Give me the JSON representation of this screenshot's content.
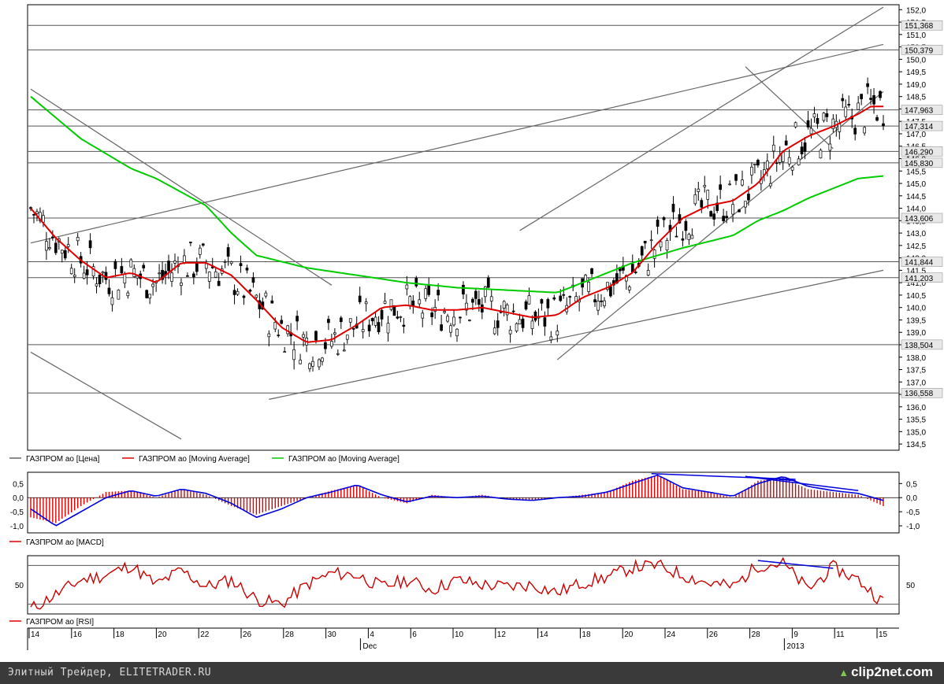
{
  "footer": {
    "site_text": "Элитный Трейдер, ELITETRADER.RU",
    "watermark": "clip2net.com"
  },
  "colors": {
    "price": "#000000",
    "ma_fast": "#e00000",
    "ma_slow": "#00cc00",
    "macd_signal": "#0000dd",
    "rsi": "#cc0000",
    "trend": "#666666"
  },
  "chart_data": [
    {
      "type": "candlestick",
      "yaxis_ticks": [
        "152,0",
        "151,5",
        "151,0",
        "150,5",
        "150,0",
        "149,5",
        "149,0",
        "148,5",
        "148,0",
        "147,5",
        "147,0",
        "146,5",
        "146,0",
        "145,5",
        "145,0",
        "144,5",
        "144,0",
        "143,5",
        "143,0",
        "142,5",
        "142,0",
        "141,5",
        "141,0",
        "140,5",
        "140,0",
        "139,5",
        "139,0",
        "138,5",
        "138,0",
        "137,5",
        "137,0",
        "136,5",
        "136,0",
        "135,5",
        "135,0",
        "134,5"
      ],
      "ylim": [
        134.25,
        152.2
      ],
      "level_labels": [
        "151,368",
        "150,379",
        "147,963",
        "147,314",
        "146,290",
        "145,830",
        "143,606",
        "141,844",
        "141,203",
        "138,504",
        "136,558"
      ],
      "levels": [
        151.368,
        150.379,
        147.963,
        147.314,
        146.29,
        145.83,
        143.606,
        141.844,
        141.203,
        138.504,
        136.558
      ],
      "legend": [
        {
          "label": "ГАЗПРОМ ао [Цена]"
        },
        {
          "label": "ГАЗПРОМ ао [Moving Average]"
        },
        {
          "label": "ГАЗПРОМ ао [Moving Average]"
        }
      ],
      "ma_fast_anchors": [
        [
          0,
          144.0
        ],
        [
          2,
          142.8
        ],
        [
          4,
          141.9
        ],
        [
          6,
          141.2
        ],
        [
          8,
          141.4
        ],
        [
          10,
          141.0
        ],
        [
          12,
          141.8
        ],
        [
          14,
          141.8
        ],
        [
          16,
          141.3
        ],
        [
          18,
          140.3
        ],
        [
          20,
          139.2
        ],
        [
          22,
          138.6
        ],
        [
          24,
          138.7
        ],
        [
          26,
          139.3
        ],
        [
          28,
          140.0
        ],
        [
          30,
          140.1
        ],
        [
          32,
          139.9
        ],
        [
          34,
          139.9
        ],
        [
          36,
          140.0
        ],
        [
          38,
          139.8
        ],
        [
          40,
          139.6
        ],
        [
          42,
          139.7
        ],
        [
          44,
          140.4
        ],
        [
          46,
          140.8
        ],
        [
          48,
          141.4
        ],
        [
          50,
          142.6
        ],
        [
          52,
          143.6
        ],
        [
          54,
          144.1
        ],
        [
          56,
          144.3
        ],
        [
          58,
          145.0
        ],
        [
          60,
          146.3
        ],
        [
          62,
          146.9
        ],
        [
          64,
          147.3
        ],
        [
          66,
          147.8
        ],
        [
          67,
          148.1
        ],
        [
          68,
          148.1
        ]
      ],
      "ma_slow_anchors": [
        [
          0,
          148.5
        ],
        [
          4,
          146.8
        ],
        [
          8,
          145.6
        ],
        [
          10,
          145.2
        ],
        [
          14,
          144.1
        ],
        [
          16,
          143.0
        ],
        [
          18,
          142.1
        ],
        [
          22,
          141.6
        ],
        [
          26,
          141.3
        ],
        [
          30,
          141.0
        ],
        [
          34,
          140.8
        ],
        [
          38,
          140.7
        ],
        [
          42,
          140.6
        ],
        [
          44,
          141.0
        ],
        [
          48,
          141.8
        ],
        [
          52,
          142.4
        ],
        [
          56,
          142.9
        ],
        [
          58,
          143.5
        ],
        [
          60,
          143.9
        ],
        [
          62,
          144.4
        ],
        [
          64,
          144.8
        ],
        [
          66,
          145.2
        ],
        [
          68,
          145.3
        ]
      ],
      "trend_lines": [
        [
          [
            0,
            142.6
          ],
          [
            68,
            150.6
          ]
        ],
        [
          [
            0,
            148.8
          ],
          [
            24,
            140.9
          ]
        ],
        [
          [
            0,
            138.2
          ],
          [
            12,
            134.7
          ]
        ],
        [
          [
            19,
            136.3
          ],
          [
            68,
            141.5
          ]
        ],
        [
          [
            39,
            143.1
          ],
          [
            68,
            152.1
          ]
        ],
        [
          [
            42,
            137.9
          ],
          [
            68,
            148.7
          ]
        ],
        [
          [
            57,
            149.7
          ],
          [
            64,
            146.4
          ]
        ]
      ]
    },
    {
      "type": "bar",
      "name": "ГАЗПРОМ ао [MACD]",
      "yaxis_ticks": [
        "0,5",
        "0,0",
        "-0,5",
        "-1,0"
      ],
      "ylim": [
        -1.25,
        0.9
      ],
      "hist_anchors": [
        [
          0,
          -0.7
        ],
        [
          2,
          -0.9
        ],
        [
          4,
          -0.3
        ],
        [
          6,
          0.2
        ],
        [
          8,
          0.25
        ],
        [
          10,
          0.0
        ],
        [
          12,
          0.3
        ],
        [
          14,
          0.1
        ],
        [
          16,
          -0.3
        ],
        [
          18,
          -0.6
        ],
        [
          20,
          -0.3
        ],
        [
          22,
          0.0
        ],
        [
          24,
          0.25
        ],
        [
          26,
          0.45
        ],
        [
          28,
          0.0
        ],
        [
          30,
          -0.2
        ],
        [
          32,
          0.1
        ],
        [
          34,
          0.0
        ],
        [
          36,
          0.1
        ],
        [
          38,
          -0.05
        ],
        [
          40,
          -0.1
        ],
        [
          42,
          0.0
        ],
        [
          44,
          0.1
        ],
        [
          46,
          0.2
        ],
        [
          48,
          0.6
        ],
        [
          50,
          0.8
        ],
        [
          52,
          0.3
        ],
        [
          54,
          0.2
        ],
        [
          56,
          0.0
        ],
        [
          58,
          0.6
        ],
        [
          60,
          0.7
        ],
        [
          62,
          0.3
        ],
        [
          64,
          0.2
        ],
        [
          66,
          0.1
        ],
        [
          68,
          -0.3
        ]
      ],
      "signal_anchors": [
        [
          0,
          -0.4
        ],
        [
          2,
          -1.0
        ],
        [
          4,
          -0.5
        ],
        [
          6,
          0.0
        ],
        [
          8,
          0.25
        ],
        [
          10,
          0.05
        ],
        [
          12,
          0.3
        ],
        [
          14,
          0.15
        ],
        [
          16,
          -0.2
        ],
        [
          18,
          -0.7
        ],
        [
          20,
          -0.4
        ],
        [
          22,
          0.0
        ],
        [
          24,
          0.2
        ],
        [
          26,
          0.45
        ],
        [
          28,
          0.1
        ],
        [
          30,
          -0.15
        ],
        [
          32,
          0.05
        ],
        [
          34,
          0.0
        ],
        [
          36,
          0.05
        ],
        [
          38,
          -0.05
        ],
        [
          40,
          -0.1
        ],
        [
          42,
          0.0
        ],
        [
          44,
          0.05
        ],
        [
          46,
          0.2
        ],
        [
          48,
          0.5
        ],
        [
          50,
          0.8
        ],
        [
          52,
          0.35
        ],
        [
          54,
          0.2
        ],
        [
          56,
          0.05
        ],
        [
          58,
          0.5
        ],
        [
          60,
          0.75
        ],
        [
          62,
          0.4
        ],
        [
          64,
          0.25
        ],
        [
          66,
          0.15
        ],
        [
          68,
          -0.1
        ]
      ],
      "divergence_lines": [
        [
          [
            49.5,
            0.85
          ],
          [
            61,
            0.65
          ]
        ],
        [
          [
            57,
            0.75
          ],
          [
            66,
            0.25
          ]
        ],
        [
          [
            57,
            0.75
          ],
          [
            61,
            0.6
          ]
        ]
      ]
    },
    {
      "type": "line",
      "name": "ГАЗПРОМ ао [RSI]",
      "yaxis_ticks": [
        "50"
      ],
      "ylim": [
        20,
        80
      ],
      "ref_levels": [
        70,
        30
      ],
      "rsi_anchors": [
        [
          0,
          25
        ],
        [
          2,
          40
        ],
        [
          4,
          55
        ],
        [
          6,
          60
        ],
        [
          8,
          70
        ],
        [
          10,
          50
        ],
        [
          12,
          65
        ],
        [
          14,
          48
        ],
        [
          16,
          55
        ],
        [
          18,
          35
        ],
        [
          20,
          30
        ],
        [
          22,
          50
        ],
        [
          24,
          62
        ],
        [
          26,
          60
        ],
        [
          28,
          48
        ],
        [
          30,
          55
        ],
        [
          32,
          45
        ],
        [
          34,
          55
        ],
        [
          36,
          50
        ],
        [
          38,
          48
        ],
        [
          40,
          50
        ],
        [
          42,
          42
        ],
        [
          44,
          52
        ],
        [
          46,
          58
        ],
        [
          48,
          68
        ],
        [
          50,
          70
        ],
        [
          52,
          60
        ],
        [
          54,
          52
        ],
        [
          56,
          48
        ],
        [
          58,
          70
        ],
        [
          60,
          72
        ],
        [
          62,
          45
        ],
        [
          64,
          68
        ],
        [
          66,
          55
        ],
        [
          68,
          32
        ]
      ],
      "divergence_lines": [
        [
          [
            58,
            75
          ],
          [
            64,
            67
          ]
        ]
      ]
    },
    {
      "type": "date_axis",
      "tick_labels": [
        "14",
        "16",
        "18",
        "20",
        "22",
        "26",
        "28",
        "30",
        "4",
        "6",
        "10",
        "12",
        "14",
        "18",
        "20",
        "24",
        "26",
        "28",
        "9",
        "11",
        "15"
      ],
      "month_labels": [
        "Dec",
        "2013"
      ]
    }
  ]
}
